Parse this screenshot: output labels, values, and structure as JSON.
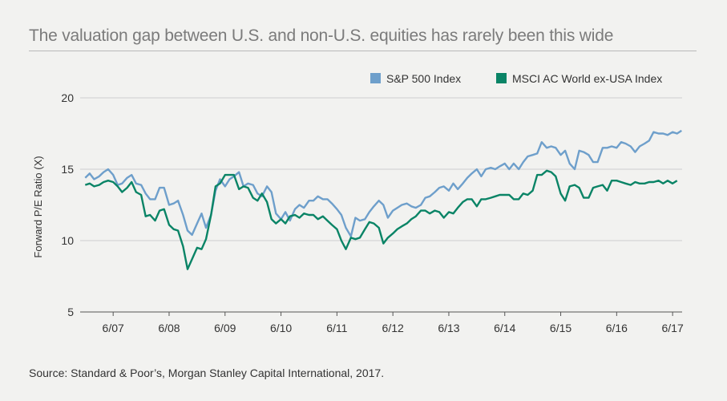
{
  "title": "The valuation gap between U.S. and non-U.S. equities has rarely been this wide",
  "source": "Source: Standard & Poor’s, Morgan Stanley Capital International, 2017.",
  "colors": {
    "sp500": "#6e9fcb",
    "msci": "#0a8466",
    "grid": "#cfcfcf",
    "background": "#f2f2f0"
  },
  "chart_data": {
    "type": "line",
    "title": "The valuation gap between U.S. and non-U.S. equities has rarely been this wide",
    "ylabel": "Forward P/E Ratio (X)",
    "xlabel": "",
    "ylim": [
      5,
      20
    ],
    "yticks": [
      5,
      10,
      15,
      20
    ],
    "xlim": [
      2006.83,
      2017.42
    ],
    "xticks": [
      {
        "x": 2007.42,
        "label": "6/07"
      },
      {
        "x": 2008.42,
        "label": "6/08"
      },
      {
        "x": 2009.42,
        "label": "6/09"
      },
      {
        "x": 2010.42,
        "label": "6/10"
      },
      {
        "x": 2011.42,
        "label": "6/11"
      },
      {
        "x": 2012.42,
        "label": "6/12"
      },
      {
        "x": 2013.42,
        "label": "6/13"
      },
      {
        "x": 2014.42,
        "label": "6/14"
      },
      {
        "x": 2015.42,
        "label": "6/15"
      },
      {
        "x": 2016.42,
        "label": "6/16"
      },
      {
        "x": 2017.42,
        "label": "6/17"
      }
    ],
    "legend": "top-right",
    "grid": true,
    "series": [
      {
        "name": "S&P 500 Index",
        "color": "#6e9fcb",
        "points": [
          [
            2006.92,
            14.4
          ],
          [
            2007.0,
            14.7
          ],
          [
            2007.08,
            14.3
          ],
          [
            2007.17,
            14.5
          ],
          [
            2007.25,
            14.8
          ],
          [
            2007.33,
            15.0
          ],
          [
            2007.42,
            14.6
          ],
          [
            2007.5,
            13.9
          ],
          [
            2007.58,
            14.0
          ],
          [
            2007.67,
            14.4
          ],
          [
            2007.75,
            14.6
          ],
          [
            2007.83,
            14.0
          ],
          [
            2007.92,
            13.9
          ],
          [
            2008.0,
            13.3
          ],
          [
            2008.08,
            12.9
          ],
          [
            2008.17,
            12.9
          ],
          [
            2008.25,
            13.7
          ],
          [
            2008.33,
            13.7
          ],
          [
            2008.42,
            12.5
          ],
          [
            2008.5,
            12.6
          ],
          [
            2008.58,
            12.8
          ],
          [
            2008.67,
            11.8
          ],
          [
            2008.75,
            10.7
          ],
          [
            2008.83,
            10.4
          ],
          [
            2008.92,
            11.2
          ],
          [
            2009.0,
            11.9
          ],
          [
            2009.08,
            10.9
          ],
          [
            2009.17,
            11.8
          ],
          [
            2009.25,
            13.5
          ],
          [
            2009.33,
            14.3
          ],
          [
            2009.42,
            13.8
          ],
          [
            2009.5,
            14.3
          ],
          [
            2009.58,
            14.5
          ],
          [
            2009.67,
            14.8
          ],
          [
            2009.75,
            13.8
          ],
          [
            2009.83,
            14.0
          ],
          [
            2009.92,
            13.9
          ],
          [
            2010.0,
            13.3
          ],
          [
            2010.08,
            13.1
          ],
          [
            2010.17,
            13.8
          ],
          [
            2010.25,
            13.4
          ],
          [
            2010.33,
            11.9
          ],
          [
            2010.42,
            11.5
          ],
          [
            2010.5,
            12.0
          ],
          [
            2010.58,
            11.4
          ],
          [
            2010.67,
            12.2
          ],
          [
            2010.75,
            12.5
          ],
          [
            2010.83,
            12.3
          ],
          [
            2010.92,
            12.8
          ],
          [
            2011.0,
            12.8
          ],
          [
            2011.08,
            13.1
          ],
          [
            2011.17,
            12.9
          ],
          [
            2011.25,
            12.9
          ],
          [
            2011.33,
            12.6
          ],
          [
            2011.42,
            12.2
          ],
          [
            2011.5,
            11.8
          ],
          [
            2011.58,
            10.9
          ],
          [
            2011.67,
            10.3
          ],
          [
            2011.75,
            11.6
          ],
          [
            2011.83,
            11.4
          ],
          [
            2011.92,
            11.5
          ],
          [
            2012.0,
            12.0
          ],
          [
            2012.08,
            12.4
          ],
          [
            2012.17,
            12.8
          ],
          [
            2012.25,
            12.5
          ],
          [
            2012.33,
            11.6
          ],
          [
            2012.42,
            12.1
          ],
          [
            2012.5,
            12.3
          ],
          [
            2012.58,
            12.5
          ],
          [
            2012.67,
            12.6
          ],
          [
            2012.75,
            12.4
          ],
          [
            2012.83,
            12.3
          ],
          [
            2012.92,
            12.5
          ],
          [
            2013.0,
            13.0
          ],
          [
            2013.08,
            13.1
          ],
          [
            2013.17,
            13.4
          ],
          [
            2013.25,
            13.7
          ],
          [
            2013.33,
            13.8
          ],
          [
            2013.42,
            13.5
          ],
          [
            2013.5,
            14.0
          ],
          [
            2013.58,
            13.6
          ],
          [
            2013.67,
            14.0
          ],
          [
            2013.75,
            14.4
          ],
          [
            2013.83,
            14.7
          ],
          [
            2013.92,
            15.0
          ],
          [
            2014.0,
            14.5
          ],
          [
            2014.08,
            15.0
          ],
          [
            2014.17,
            15.1
          ],
          [
            2014.25,
            15.0
          ],
          [
            2014.33,
            15.2
          ],
          [
            2014.42,
            15.4
          ],
          [
            2014.5,
            15.0
          ],
          [
            2014.58,
            15.4
          ],
          [
            2014.67,
            15.0
          ],
          [
            2014.75,
            15.5
          ],
          [
            2014.83,
            15.9
          ],
          [
            2014.92,
            16.0
          ],
          [
            2015.0,
            16.1
          ],
          [
            2015.08,
            16.9
          ],
          [
            2015.17,
            16.5
          ],
          [
            2015.25,
            16.6
          ],
          [
            2015.33,
            16.5
          ],
          [
            2015.42,
            16.0
          ],
          [
            2015.5,
            16.3
          ],
          [
            2015.58,
            15.4
          ],
          [
            2015.67,
            15.0
          ],
          [
            2015.75,
            16.3
          ],
          [
            2015.83,
            16.2
          ],
          [
            2015.92,
            16.0
          ],
          [
            2016.0,
            15.5
          ],
          [
            2016.08,
            15.5
          ],
          [
            2016.17,
            16.5
          ],
          [
            2016.25,
            16.5
          ],
          [
            2016.33,
            16.6
          ],
          [
            2016.42,
            16.5
          ],
          [
            2016.5,
            16.9
          ],
          [
            2016.58,
            16.8
          ],
          [
            2016.67,
            16.6
          ],
          [
            2016.75,
            16.2
          ],
          [
            2016.83,
            16.6
          ],
          [
            2016.92,
            16.8
          ],
          [
            2017.0,
            17.0
          ],
          [
            2017.08,
            17.6
          ],
          [
            2017.17,
            17.5
          ],
          [
            2017.25,
            17.5
          ],
          [
            2017.33,
            17.4
          ],
          [
            2017.42,
            17.6
          ],
          [
            2017.5,
            17.5
          ],
          [
            2017.58,
            17.7
          ]
        ]
      },
      {
        "name": "MSCI AC World ex-USA Index",
        "color": "#0a8466",
        "points": [
          [
            2006.92,
            13.9
          ],
          [
            2007.0,
            14.0
          ],
          [
            2007.08,
            13.8
          ],
          [
            2007.17,
            13.9
          ],
          [
            2007.25,
            14.1
          ],
          [
            2007.33,
            14.2
          ],
          [
            2007.42,
            14.1
          ],
          [
            2007.5,
            13.8
          ],
          [
            2007.58,
            13.4
          ],
          [
            2007.67,
            13.7
          ],
          [
            2007.75,
            14.1
          ],
          [
            2007.83,
            13.4
          ],
          [
            2007.92,
            13.2
          ],
          [
            2008.0,
            11.7
          ],
          [
            2008.08,
            11.8
          ],
          [
            2008.17,
            11.4
          ],
          [
            2008.25,
            12.1
          ],
          [
            2008.33,
            12.2
          ],
          [
            2008.42,
            11.1
          ],
          [
            2008.5,
            10.8
          ],
          [
            2008.58,
            10.7
          ],
          [
            2008.67,
            9.6
          ],
          [
            2008.75,
            8.0
          ],
          [
            2008.83,
            8.7
          ],
          [
            2008.92,
            9.5
          ],
          [
            2009.0,
            9.4
          ],
          [
            2009.08,
            10.1
          ],
          [
            2009.17,
            11.8
          ],
          [
            2009.25,
            13.8
          ],
          [
            2009.33,
            14.0
          ],
          [
            2009.42,
            14.6
          ],
          [
            2009.5,
            14.6
          ],
          [
            2009.58,
            14.6
          ],
          [
            2009.67,
            13.6
          ],
          [
            2009.75,
            13.8
          ],
          [
            2009.83,
            13.7
          ],
          [
            2009.92,
            13.0
          ],
          [
            2010.0,
            12.8
          ],
          [
            2010.08,
            13.3
          ],
          [
            2010.17,
            12.7
          ],
          [
            2010.25,
            11.5
          ],
          [
            2010.33,
            11.2
          ],
          [
            2010.42,
            11.5
          ],
          [
            2010.5,
            11.2
          ],
          [
            2010.58,
            11.7
          ],
          [
            2010.67,
            11.8
          ],
          [
            2010.75,
            11.6
          ],
          [
            2010.83,
            11.9
          ],
          [
            2010.92,
            11.8
          ],
          [
            2011.0,
            11.8
          ],
          [
            2011.08,
            11.5
          ],
          [
            2011.17,
            11.7
          ],
          [
            2011.25,
            11.4
          ],
          [
            2011.33,
            11.1
          ],
          [
            2011.42,
            10.8
          ],
          [
            2011.5,
            10.0
          ],
          [
            2011.58,
            9.4
          ],
          [
            2011.67,
            10.2
          ],
          [
            2011.75,
            10.1
          ],
          [
            2011.83,
            10.2
          ],
          [
            2011.92,
            10.8
          ],
          [
            2012.0,
            11.3
          ],
          [
            2012.08,
            11.2
          ],
          [
            2012.17,
            10.9
          ],
          [
            2012.25,
            9.8
          ],
          [
            2012.33,
            10.2
          ],
          [
            2012.42,
            10.5
          ],
          [
            2012.5,
            10.8
          ],
          [
            2012.58,
            11.0
          ],
          [
            2012.67,
            11.2
          ],
          [
            2012.75,
            11.5
          ],
          [
            2012.83,
            11.7
          ],
          [
            2012.92,
            12.1
          ],
          [
            2013.0,
            12.1
          ],
          [
            2013.08,
            11.9
          ],
          [
            2013.17,
            12.1
          ],
          [
            2013.25,
            12.0
          ],
          [
            2013.33,
            11.6
          ],
          [
            2013.42,
            12.0
          ],
          [
            2013.5,
            11.9
          ],
          [
            2013.58,
            12.3
          ],
          [
            2013.67,
            12.7
          ],
          [
            2013.75,
            12.9
          ],
          [
            2013.83,
            12.9
          ],
          [
            2013.92,
            12.4
          ],
          [
            2014.0,
            12.9
          ],
          [
            2014.08,
            12.9
          ],
          [
            2014.17,
            13.0
          ],
          [
            2014.25,
            13.1
          ],
          [
            2014.33,
            13.2
          ],
          [
            2014.42,
            13.2
          ],
          [
            2014.5,
            13.2
          ],
          [
            2014.58,
            12.9
          ],
          [
            2014.67,
            12.9
          ],
          [
            2014.75,
            13.3
          ],
          [
            2014.83,
            13.2
          ],
          [
            2014.92,
            13.5
          ],
          [
            2015.0,
            14.6
          ],
          [
            2015.08,
            14.6
          ],
          [
            2015.17,
            14.9
          ],
          [
            2015.25,
            14.8
          ],
          [
            2015.33,
            14.5
          ],
          [
            2015.42,
            13.3
          ],
          [
            2015.5,
            12.8
          ],
          [
            2015.58,
            13.8
          ],
          [
            2015.67,
            13.9
          ],
          [
            2015.75,
            13.7
          ],
          [
            2015.83,
            13.0
          ],
          [
            2015.92,
            13.0
          ],
          [
            2016.0,
            13.7
          ],
          [
            2016.08,
            13.8
          ],
          [
            2016.17,
            13.9
          ],
          [
            2016.25,
            13.5
          ],
          [
            2016.33,
            14.2
          ],
          [
            2016.42,
            14.2
          ],
          [
            2016.5,
            14.1
          ],
          [
            2016.58,
            14.0
          ],
          [
            2016.67,
            13.9
          ],
          [
            2016.75,
            14.1
          ],
          [
            2016.83,
            14.0
          ],
          [
            2016.92,
            14.0
          ],
          [
            2017.0,
            14.1
          ],
          [
            2017.08,
            14.1
          ],
          [
            2017.17,
            14.2
          ],
          [
            2017.25,
            14.0
          ],
          [
            2017.33,
            14.2
          ],
          [
            2017.42,
            14.0
          ],
          [
            2017.5,
            14.2
          ]
        ]
      }
    ]
  }
}
